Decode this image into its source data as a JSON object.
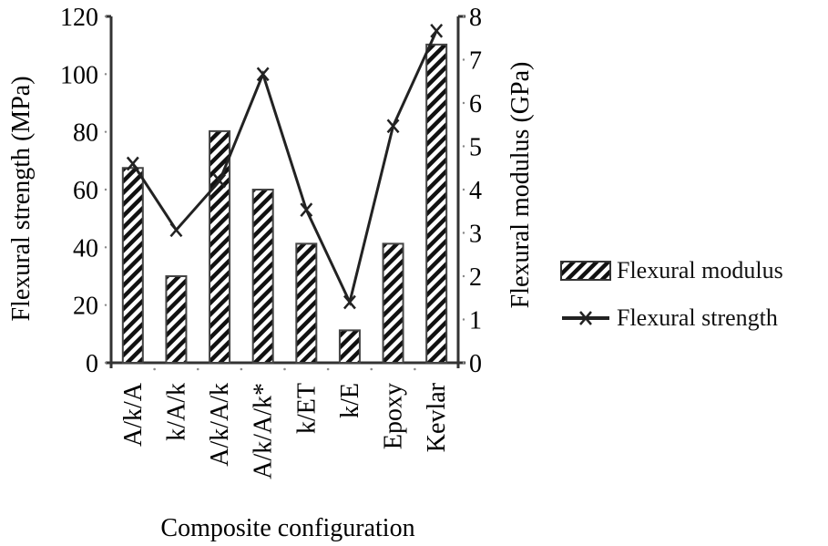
{
  "chart_data": {
    "type": "bar+line",
    "title": "",
    "xlabel": "Composite configuration",
    "ylabel_left": "Flexural strength (MPa)",
    "ylabel_right": "Flexural modulus (GPa)",
    "ylim_left": [
      0,
      120
    ],
    "ylim_right": [
      0,
      8
    ],
    "yticks_left": [
      0,
      20,
      40,
      60,
      80,
      100,
      120
    ],
    "yticks_right": [
      0,
      1,
      2,
      3,
      4,
      5,
      6,
      7,
      8
    ],
    "categories": [
      "A/k/A",
      "k/A/k",
      "A/k/A/k",
      "A/k/A/k*",
      "k/ET",
      "k/E",
      "Epoxy",
      "Kevlar"
    ],
    "series": [
      {
        "name": "Flexural modulus",
        "type": "bar",
        "axis": "right",
        "pattern": "diagonal-hatch",
        "values": [
          4.5,
          2.0,
          5.35,
          4.0,
          2.75,
          0.75,
          2.75,
          7.35
        ]
      },
      {
        "name": "Flexural strength",
        "type": "line",
        "axis": "left",
        "marker": "x",
        "values": [
          69,
          46,
          63,
          100,
          53,
          21,
          82,
          115
        ]
      }
    ],
    "legend_position": "right",
    "grid": false
  },
  "legend": {
    "items": [
      {
        "label": "Flexural modulus"
      },
      {
        "label": "Flexural strength"
      }
    ]
  }
}
